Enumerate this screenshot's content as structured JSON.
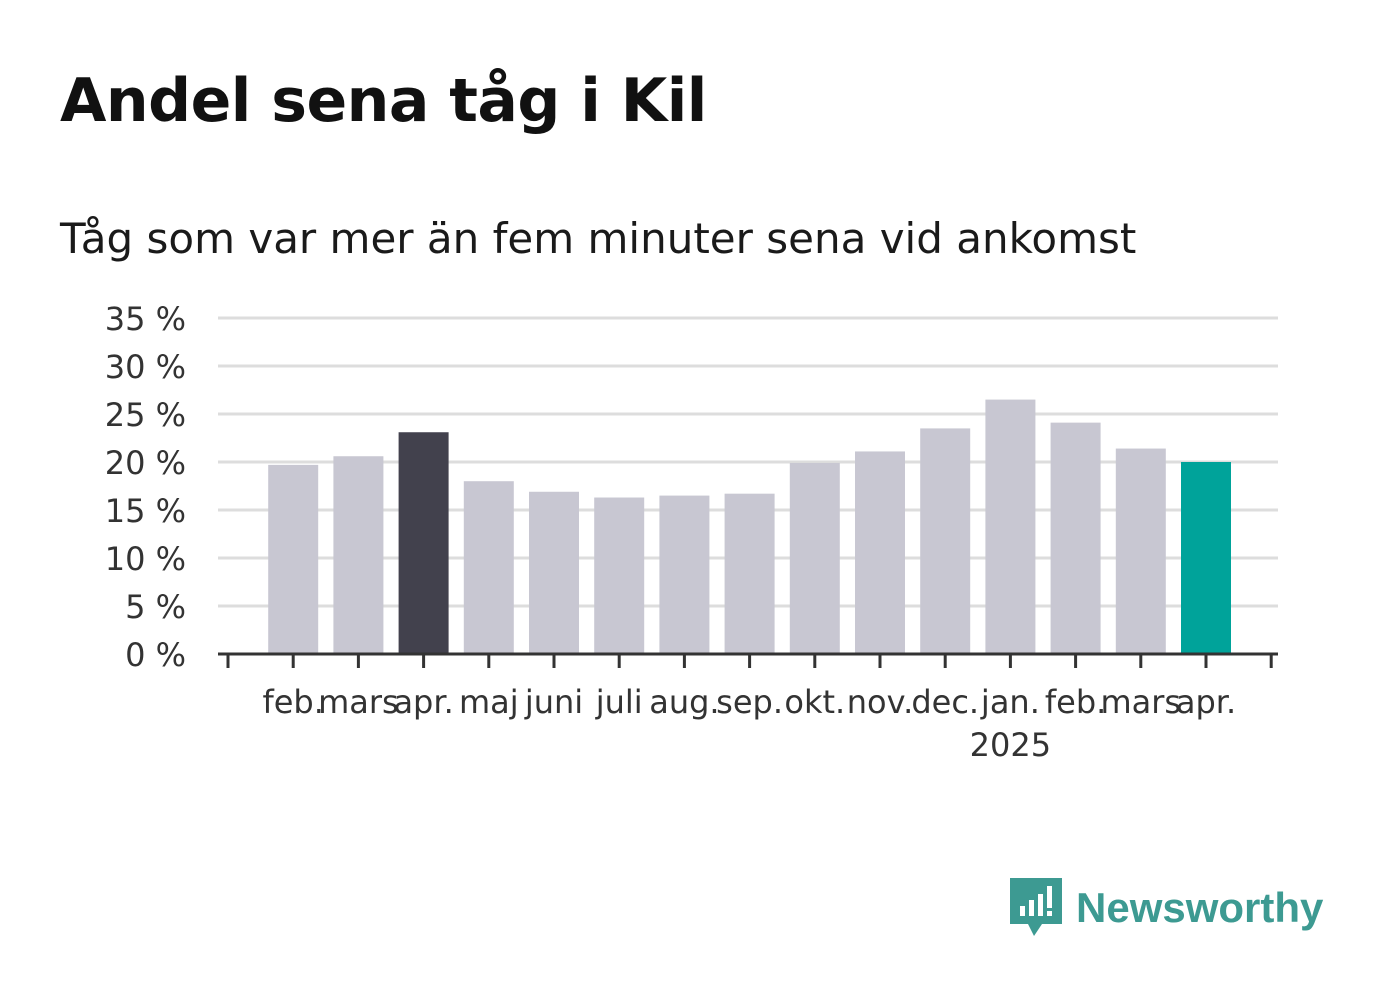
{
  "title": "Andel sena tåg i Kil",
  "subtitle": "Tåg som var mer än fem minuter sena vid ankomst",
  "brand": {
    "name": "Newsworthy",
    "color": "#3d9a92",
    "icon": "bar-chart-speech-bubble-icon"
  },
  "chart_data": {
    "type": "bar",
    "categories": [
      "feb.",
      "mars",
      "apr.",
      "maj",
      "juni",
      "juli",
      "aug.",
      "sep.",
      "okt.",
      "nov.",
      "dec.",
      "jan.",
      "feb.",
      "mars",
      "apr."
    ],
    "year_label": {
      "text": "2025",
      "category_index": 11
    },
    "values": [
      19.7,
      20.6,
      23.1,
      18.0,
      16.9,
      16.3,
      16.5,
      16.7,
      19.9,
      21.1,
      23.5,
      26.5,
      24.1,
      21.4,
      20.0
    ],
    "highlight": {
      "2": "#42414d",
      "14": "#00a39a"
    },
    "bar_color": "#c8c7d2",
    "ylim": [
      0,
      35
    ],
    "y_ticks": [
      0,
      5,
      10,
      15,
      20,
      25,
      30,
      35
    ],
    "y_tick_labels": [
      "0 %",
      "5 %",
      "10 %",
      "15 %",
      "20 %",
      "25 %",
      "30 %",
      "35 %"
    ],
    "xlabel": "",
    "ylabel": "",
    "grid": true,
    "legend": "none"
  }
}
